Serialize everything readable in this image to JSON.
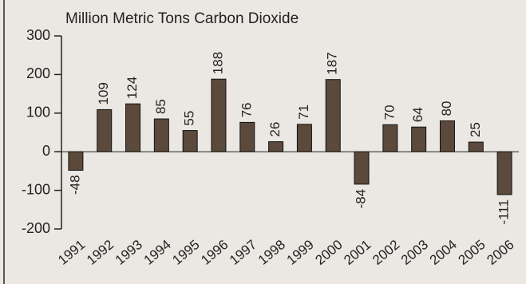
{
  "chart_data": {
    "type": "bar",
    "subtitle": "Million Metric Tons Carbon Dioxide",
    "categories": [
      "1991",
      "1992",
      "1993",
      "1994",
      "1995",
      "1996",
      "1997",
      "1998",
      "1999",
      "2000",
      "2001",
      "2002",
      "2003",
      "2004",
      "2005",
      "2006"
    ],
    "values": [
      -48,
      109,
      124,
      85,
      55,
      188,
      76,
      26,
      71,
      187,
      -84,
      70,
      64,
      80,
      25,
      -111
    ],
    "color": "#5b4a3c",
    "ylim": [
      -200,
      300
    ],
    "yticks": [
      -200,
      -100,
      0,
      100,
      200,
      300
    ]
  }
}
